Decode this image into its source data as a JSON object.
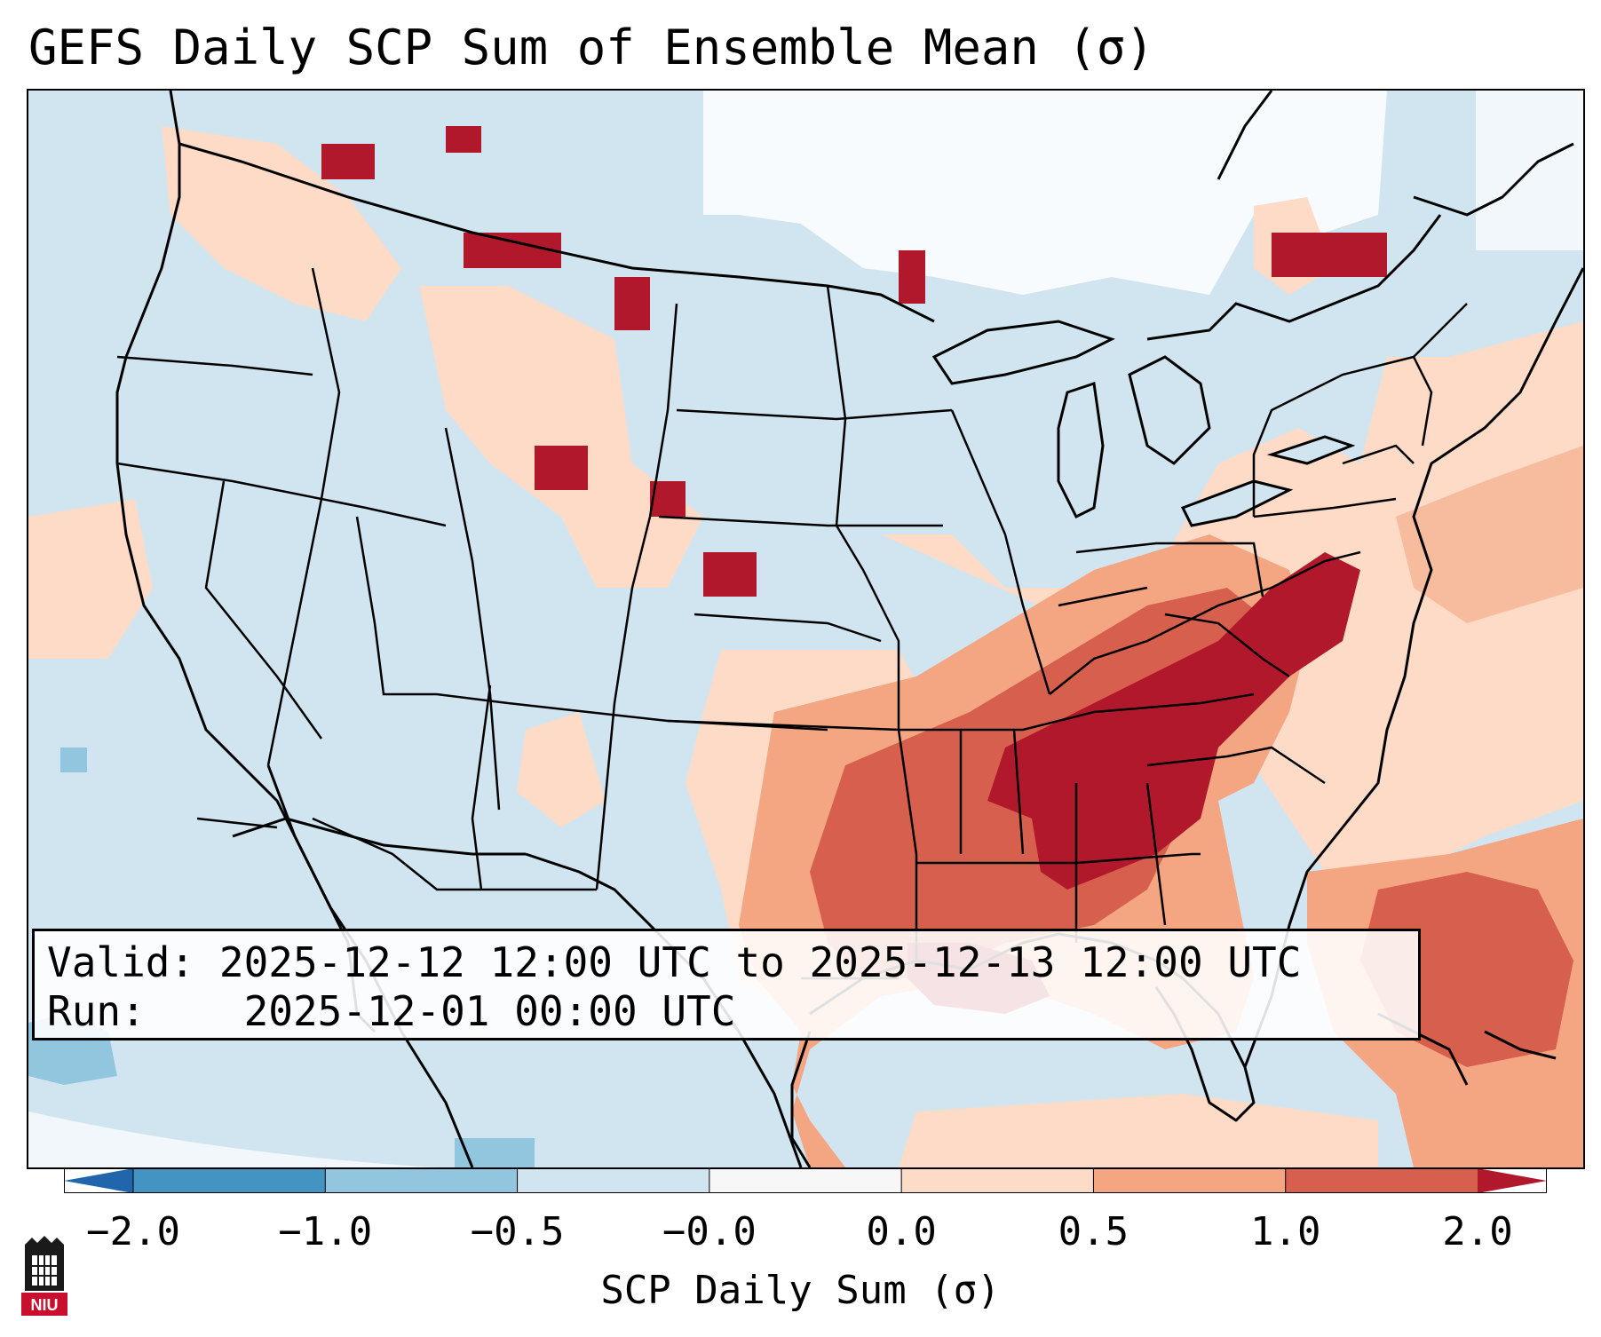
{
  "title": "GEFS Daily SCP Sum of Ensemble Mean (σ)",
  "info": {
    "valid_label": "Valid:",
    "valid_value": "2025-12-12 12:00 UTC to 2025-12-13 12:00 UTC",
    "run_label": "Run:",
    "run_value": "2025-12-01 00:00 UTC"
  },
  "colorbar": {
    "label": "SCP Daily Sum (σ)",
    "ticks": [
      "−2.0",
      "−1.0",
      "−0.5",
      "−0.0",
      "0.0",
      "0.5",
      "1.0",
      "2.0"
    ],
    "colors": [
      "#4393c3",
      "#92c5de",
      "#d1e5f0",
      "#f7f7f7",
      "#fddbc7",
      "#f4a582",
      "#d6604d"
    ],
    "extend_low_color": "#2166ac",
    "extend_high_color": "#b2182b"
  },
  "map": {
    "region": "Contiguous United States and surrounding areas",
    "max_region": "Southeastern United States (Mississippi, Alabama, Georgia, Tennessee, Carolinas)"
  },
  "logo_text": "NIU"
}
